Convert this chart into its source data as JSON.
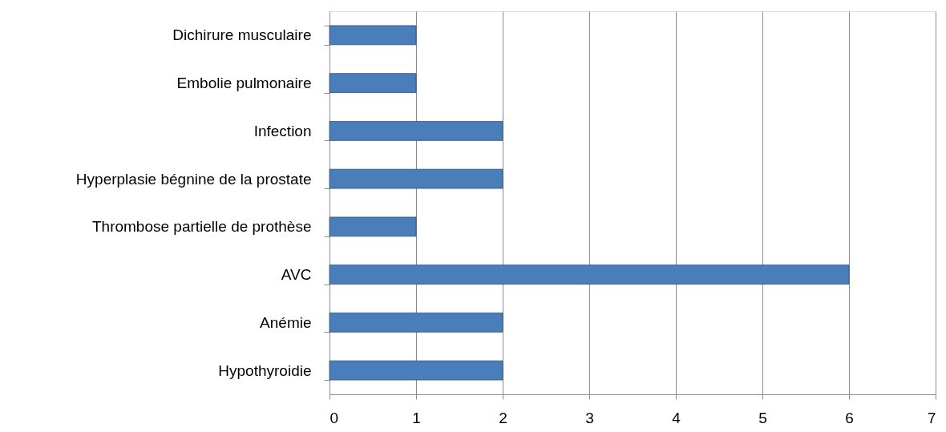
{
  "chart_data": {
    "type": "bar",
    "orientation": "horizontal",
    "categories": [
      "Dichirure musculaire",
      "Embolie pulmonaire",
      "Infection",
      "Hyperplasie bégnine de la prostate",
      "Thrombose partielle de prothèse",
      "AVC",
      "Anémie",
      "Hypothyroidie"
    ],
    "values": [
      1,
      1,
      2,
      2,
      1,
      6,
      2,
      2
    ],
    "color": "#4a7ebb",
    "xlim": [
      0,
      7
    ],
    "xticks": [
      0,
      1,
      2,
      3,
      4,
      5,
      6,
      7
    ],
    "grid": "x"
  }
}
